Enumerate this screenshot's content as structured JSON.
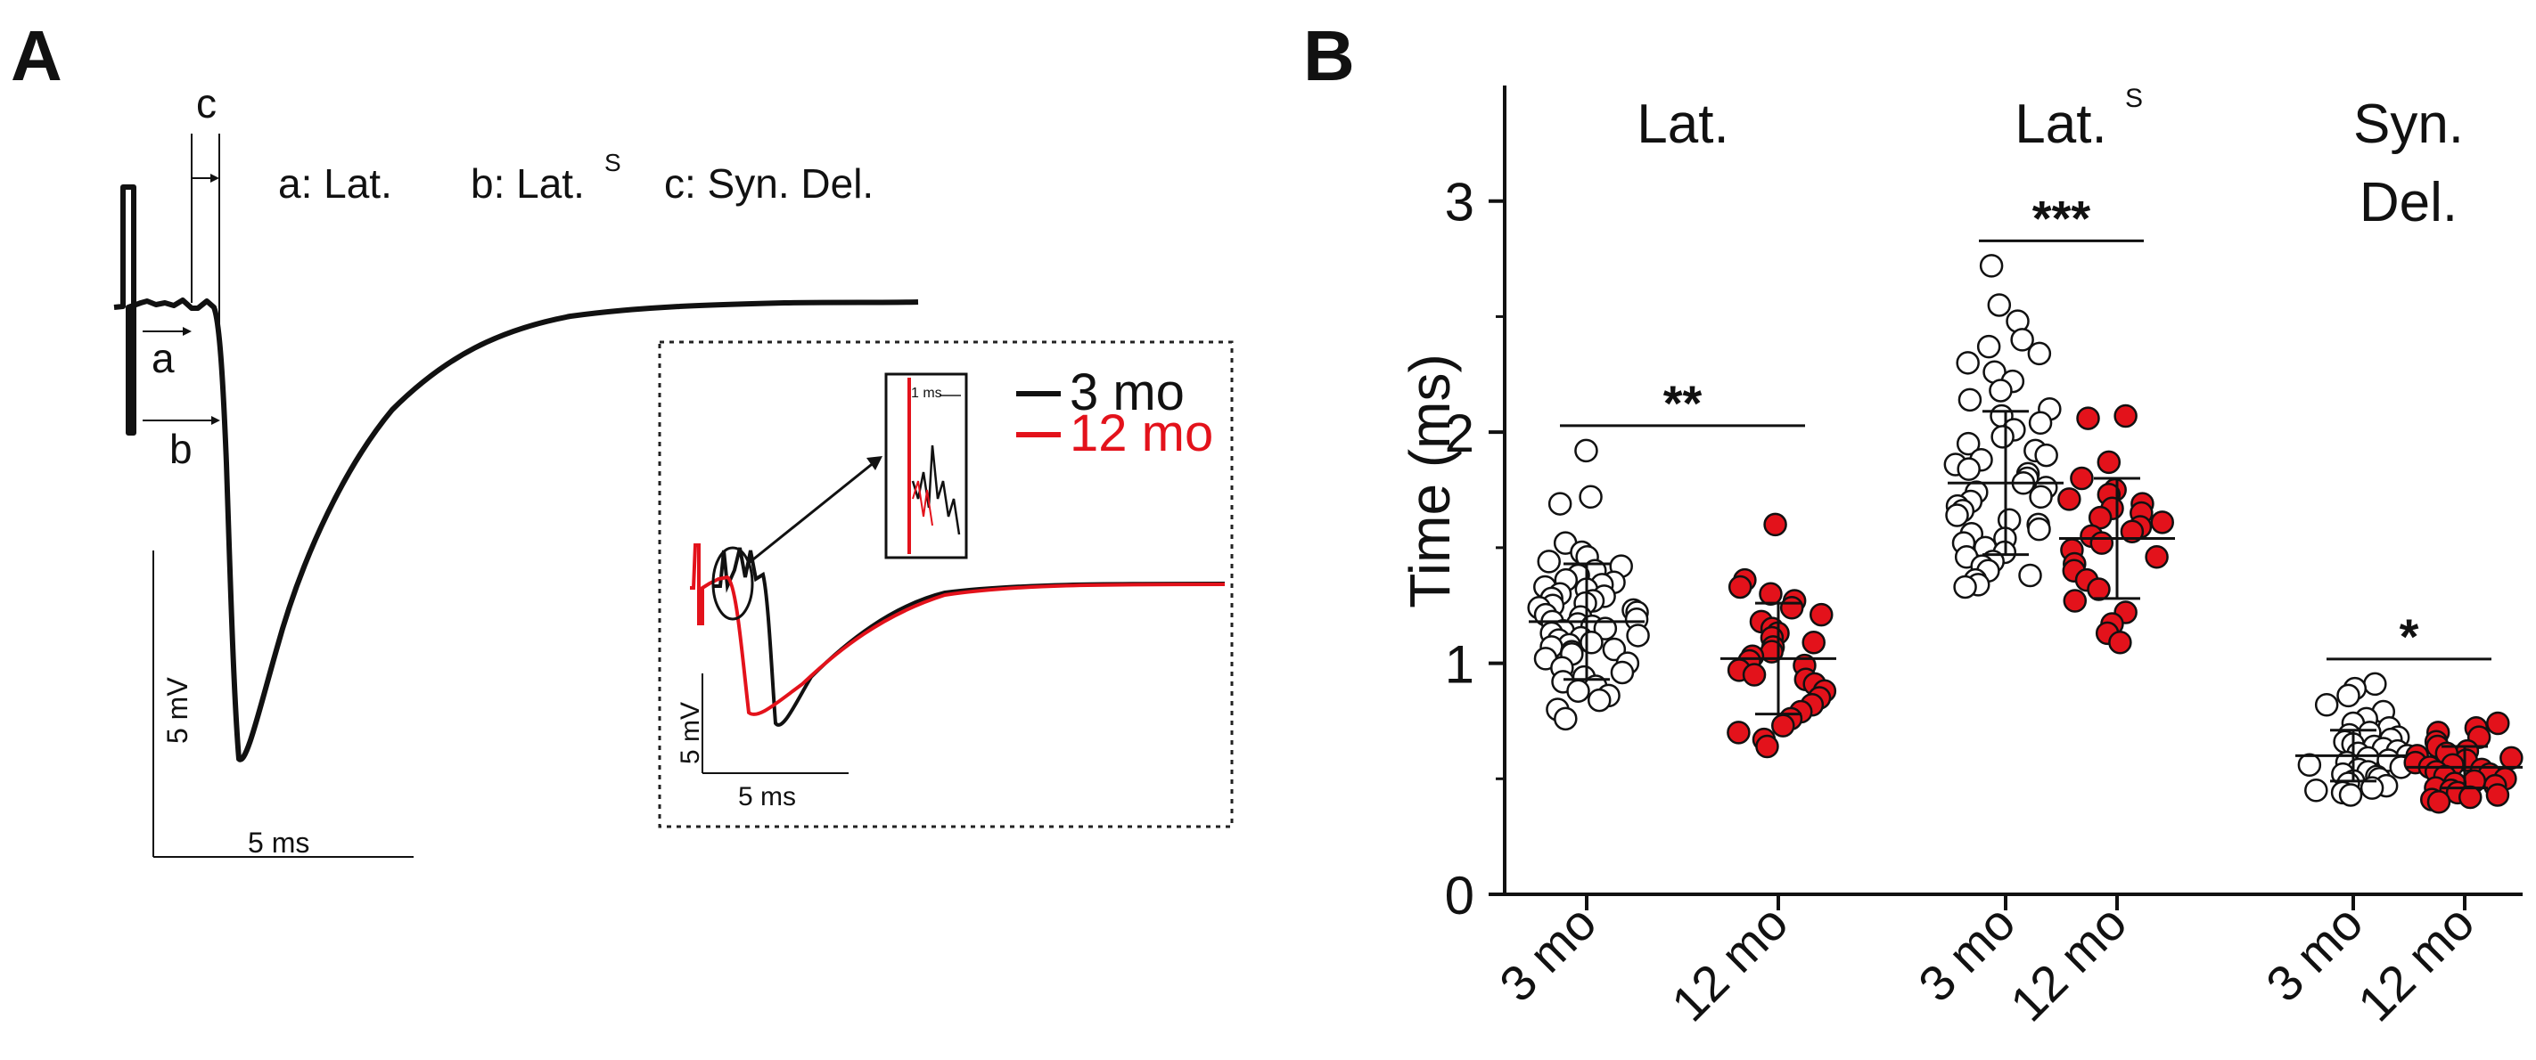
{
  "panel_a": {
    "letter": "A",
    "letters": {
      "a": "a",
      "b": "b",
      "c": "c"
    },
    "legend_text": {
      "a": "a: Lat.",
      "b": "b: Lat.",
      "b_sup": "S",
      "c": "c: Syn. Del."
    },
    "scale_y": "5 mV",
    "scale_x": "5 ms",
    "inset": {
      "legend": [
        {
          "name": "3 mo",
          "color": "#111111"
        },
        {
          "name": "12 mo",
          "color": "#e3121b"
        }
      ],
      "scale_y": "5 mV",
      "scale_x": "5 ms",
      "zoom_scale": "1 ms"
    }
  },
  "chart_data": {
    "type": "scatter",
    "title": "B",
    "ylabel": "Time (ms)",
    "ylim": [
      0,
      3.5
    ],
    "yticks": [
      "0",
      "1",
      "2",
      "3"
    ],
    "groups": [
      {
        "label": "Lat.",
        "significance": "**",
        "series": [
          {
            "name": "3 mo",
            "mean": 1.18,
            "sd": 0.25,
            "values": [
              1.92,
              1.72,
              1.69,
              1.52,
              1.48,
              1.46,
              1.44,
              1.42,
              1.4,
              1.38,
              1.36,
              1.35,
              1.34,
              1.33,
              1.32,
              1.3,
              1.29,
              1.28,
              1.27,
              1.26,
              1.25,
              1.24,
              1.23,
              1.22,
              1.21,
              1.2,
              1.19,
              1.18,
              1.17,
              1.16,
              1.15,
              1.14,
              1.13,
              1.12,
              1.11,
              1.1,
              1.09,
              1.08,
              1.07,
              1.06,
              1.05,
              1.04,
              1.02,
              1.0,
              0.98,
              0.96,
              0.94,
              0.92,
              0.9,
              0.88,
              0.86,
              0.84,
              0.8,
              0.76
            ]
          },
          {
            "name": "12 mo",
            "mean": 1.02,
            "sd": 0.24,
            "values": [
              1.6,
              1.36,
              1.33,
              1.3,
              1.27,
              1.24,
              1.21,
              1.18,
              1.15,
              1.13,
              1.11,
              1.09,
              1.07,
              1.05,
              1.03,
              1.01,
              0.99,
              0.97,
              0.95,
              0.93,
              0.91,
              0.88,
              0.85,
              0.82,
              0.79,
              0.76,
              0.73,
              0.7,
              0.67,
              0.64
            ]
          }
        ]
      },
      {
        "label": "Lat.",
        "label_sup": "S",
        "significance": "***",
        "series": [
          {
            "name": "3 mo",
            "mean": 1.78,
            "sd": 0.31,
            "values": [
              2.72,
              2.55,
              2.48,
              2.4,
              2.37,
              2.34,
              2.3,
              2.26,
              2.22,
              2.18,
              2.14,
              2.1,
              2.07,
              2.04,
              2.01,
              1.98,
              1.95,
              1.92,
              1.9,
              1.88,
              1.86,
              1.84,
              1.82,
              1.8,
              1.78,
              1.76,
              1.74,
              1.72,
              1.7,
              1.68,
              1.66,
              1.64,
              1.62,
              1.6,
              1.58,
              1.56,
              1.54,
              1.52,
              1.5,
              1.48,
              1.46,
              1.44,
              1.42,
              1.4,
              1.38,
              1.36,
              1.34,
              1.33
            ]
          },
          {
            "name": "12 mo",
            "mean": 1.54,
            "sd": 0.26,
            "values": [
              2.07,
              2.06,
              1.87,
              1.8,
              1.75,
              1.73,
              1.71,
              1.69,
              1.67,
              1.65,
              1.63,
              1.61,
              1.59,
              1.57,
              1.55,
              1.52,
              1.49,
              1.46,
              1.43,
              1.4,
              1.36,
              1.32,
              1.27,
              1.22,
              1.17,
              1.13,
              1.09
            ]
          }
        ]
      },
      {
        "label": "Syn.",
        "label_line2": "Del.",
        "significance": "*",
        "series": [
          {
            "name": "3 mo",
            "mean": 0.6,
            "sd": 0.11,
            "values": [
              0.91,
              0.89,
              0.86,
              0.82,
              0.79,
              0.76,
              0.74,
              0.72,
              0.7,
              0.69,
              0.68,
              0.67,
              0.66,
              0.65,
              0.64,
              0.63,
              0.62,
              0.61,
              0.6,
              0.59,
              0.58,
              0.57,
              0.56,
              0.55,
              0.54,
              0.53,
              0.52,
              0.51,
              0.5,
              0.49,
              0.48,
              0.47,
              0.46,
              0.45,
              0.44,
              0.43
            ]
          },
          {
            "name": "12 mo",
            "mean": 0.55,
            "sd": 0.09,
            "values": [
              0.74,
              0.72,
              0.7,
              0.68,
              0.66,
              0.64,
              0.62,
              0.61,
              0.6,
              0.59,
              0.58,
              0.57,
              0.56,
              0.55,
              0.54,
              0.53,
              0.52,
              0.51,
              0.5,
              0.49,
              0.48,
              0.47,
              0.46,
              0.45,
              0.44,
              0.43,
              0.42,
              0.41,
              0.4
            ]
          }
        ]
      }
    ],
    "colors": {
      "3 mo": "#ffffff",
      "12 mo": "#e3121b"
    }
  }
}
